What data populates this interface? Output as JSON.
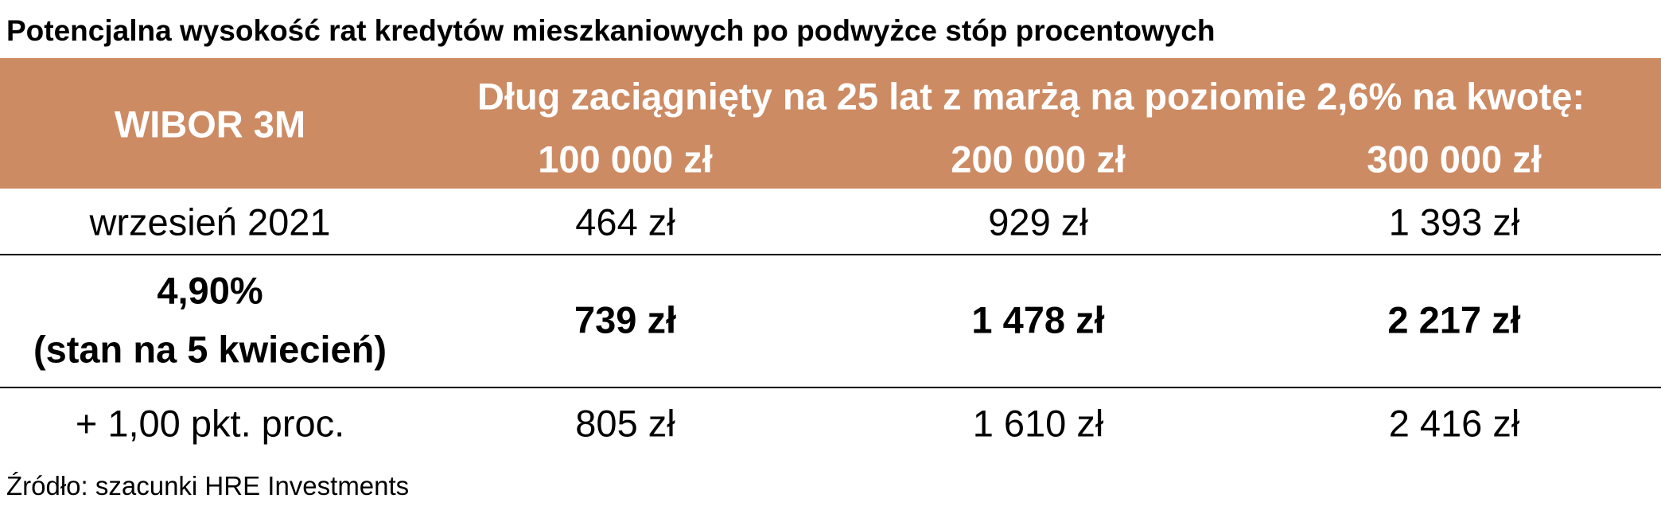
{
  "header": {
    "title": "Potencjalna wysokość rat kredytów mieszkaniowych po podwyżce stóp procentowych"
  },
  "table": {
    "row_header": "WIBOR 3M",
    "column_group": "Dług zaciągnięty na 25 lat z marżą na poziomie 2,6% na kwotę:",
    "columns": [
      "100 000 zł",
      "200 000 zł",
      "300 000 zł"
    ],
    "rows": [
      {
        "label": [
          "wrzesień 2021"
        ],
        "values": [
          "464 zł",
          "929 zł",
          "1 393 zł"
        ],
        "bold": false
      },
      {
        "label": [
          "4,90%",
          "(stan na 5 kwiecień)"
        ],
        "values": [
          "739 zł",
          "1 478 zł",
          "2 217 zł"
        ],
        "bold": true
      },
      {
        "label": [
          "+ 1,00 pkt. proc."
        ],
        "values": [
          "805 zł",
          "1 610 zł",
          "2 416 zł"
        ],
        "bold": false
      }
    ]
  },
  "footer": {
    "source": "Źródło: szacunki HRE Investments"
  }
}
